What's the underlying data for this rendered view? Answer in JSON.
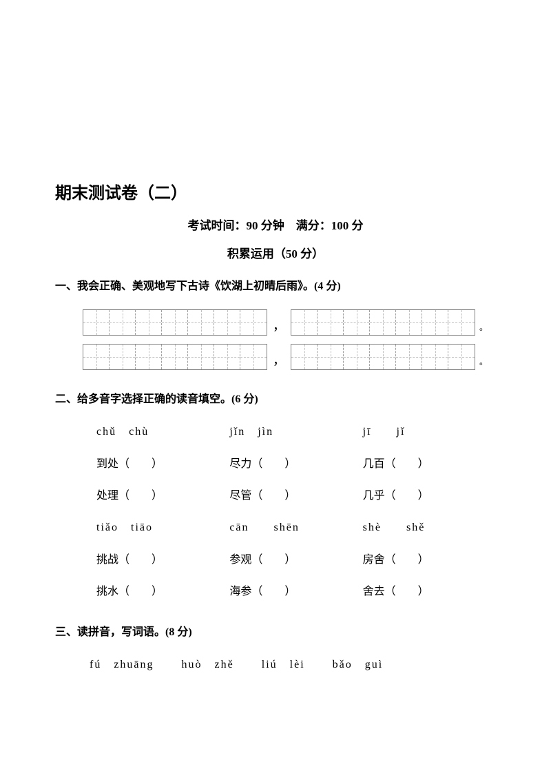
{
  "title": "期末测试卷（二）",
  "exam_info": "考试时间：90 分钟　满分：100 分",
  "section_header": "积累运用（50 分）",
  "q1": {
    "title": "一、我会正确、美观地写下古诗《饮湖上初晴后雨》。(4 分)",
    "cells_per_box": 7,
    "punctuation": {
      "comma": "，",
      "period": "。"
    }
  },
  "q2": {
    "title": "二、给多音字选择正确的读音填空。(6 分)",
    "groups": [
      {
        "pinyin": "chǔ　chù",
        "words": [
          "到处（　　）",
          "处理（　　）"
        ]
      },
      {
        "pinyin": "jǐn　jìn",
        "words": [
          "尽力（　　）",
          "尽管（　　）"
        ]
      },
      {
        "pinyin": "jī　　jǐ",
        "words": [
          "几百（　　）",
          "几乎（　　）"
        ]
      },
      {
        "pinyin": "tiǎo　tiāo",
        "words": [
          "挑战（　　）",
          "挑水（　　）"
        ]
      },
      {
        "pinyin": "cān　　shēn",
        "words": [
          "参观（　　）",
          "海参（　　）"
        ]
      },
      {
        "pinyin": "shè　　shě",
        "words": [
          "房舍（　　）",
          "舍去（　　）"
        ]
      }
    ]
  },
  "q3": {
    "title": "三、读拼音，写词语。(8 分)",
    "pinyin_groups": [
      "fú　zhuāng",
      "huò　zhě",
      "liú　lèi",
      "bǎo　guì"
    ]
  }
}
